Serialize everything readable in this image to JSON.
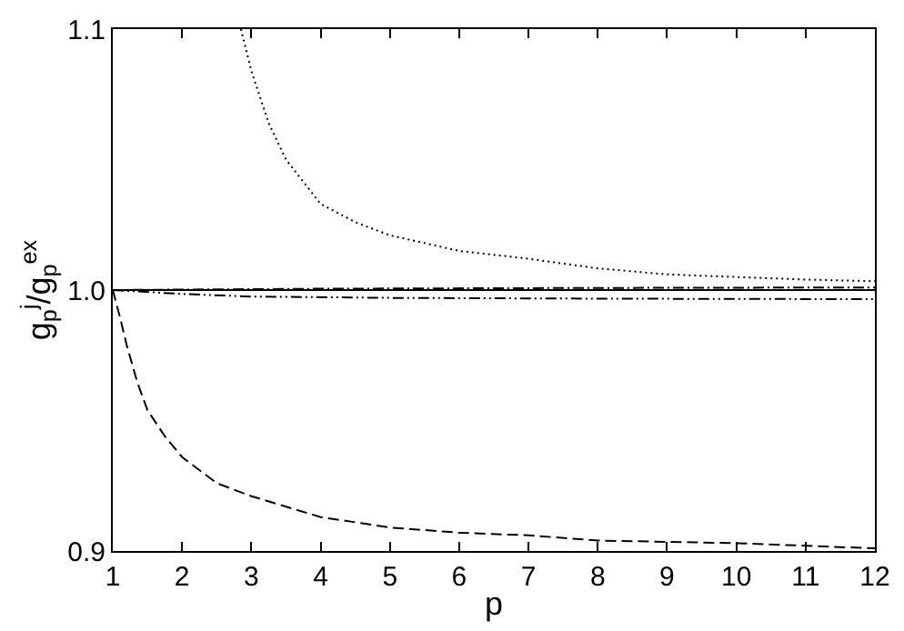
{
  "chart_data": {
    "type": "line",
    "xlabel": "p",
    "ylabel": "g$_{p}$$^{j}$/g$_{p}$$^{ex}$",
    "xlim": [
      1,
      12
    ],
    "ylim": [
      0.9,
      1.1
    ],
    "xticks": [
      1,
      2,
      3,
      4,
      5,
      6,
      7,
      8,
      9,
      10,
      11,
      12
    ],
    "yticks": [
      {
        "value": 0.9,
        "label": "0.9"
      },
      {
        "value": 1.0,
        "label": "1.0"
      },
      {
        "value": 1.1,
        "label": "1.1"
      }
    ],
    "marker": "none",
    "series": [
      {
        "color": "#000000",
        "line_style": "solid",
        "x": [
          1,
          12
        ],
        "values": [
          1.0,
          1.0
        ]
      },
      {
        "color": "#000000",
        "line_style": "dotted",
        "x": [
          2.85,
          3.0,
          3.25,
          3.5,
          4,
          4.5,
          5,
          6,
          7,
          8,
          9,
          10,
          11,
          12
        ],
        "values": [
          1.1,
          1.084,
          1.064,
          1.05,
          1.033,
          1.026,
          1.021,
          1.015,
          1.012,
          1.0083,
          1.006,
          1.005,
          1.004,
          1.0034
        ]
      },
      {
        "color": "#000000",
        "line_style": "dashed",
        "x": [
          1,
          1.1,
          1.2,
          1.35,
          1.5,
          1.75,
          2,
          2.5,
          3,
          4,
          5,
          6,
          7,
          8,
          10,
          12
        ],
        "values": [
          1.0,
          0.99,
          0.979,
          0.965,
          0.954,
          0.944,
          0.936,
          0.926,
          0.921,
          0.913,
          0.909,
          0.907,
          0.906,
          0.904,
          0.903,
          0.901
        ]
      },
      {
        "color": "#000000",
        "line_style": "dashdot",
        "x": [
          1,
          4,
          8,
          12
        ],
        "values": [
          1.0,
          1.0005,
          1.0008,
          1.001
        ]
      },
      {
        "color": "#000000",
        "line_style": "dashdotdot",
        "x": [
          1,
          2,
          3,
          5,
          8,
          12
        ],
        "values": [
          1.0,
          0.9985,
          0.9975,
          0.997,
          0.9967,
          0.9965
        ]
      }
    ]
  }
}
